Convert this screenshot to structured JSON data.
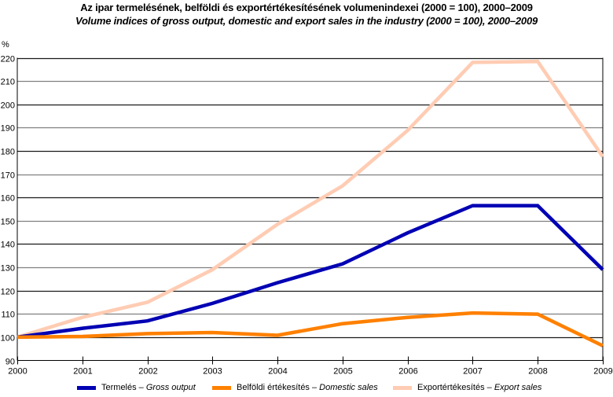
{
  "chart_data": {
    "type": "line",
    "title": "Az ipar termelésének, belföldi és exportértékesítésének volumenindexei (2000 = 100), 2000–2009",
    "subtitle": "Volume indices of gross output, domestic and export sales in the industry (2000 = 100), 2000–2009",
    "xlabel": "",
    "ylabel": "%",
    "x": [
      2000,
      2001,
      2002,
      2003,
      2004,
      2005,
      2006,
      2007,
      2008,
      2009
    ],
    "x_tick_labels": [
      "2000",
      "2001",
      "2002",
      "2003",
      "2004",
      "2005",
      "2006",
      "2007",
      "2008",
      "2009"
    ],
    "ylim": [
      90,
      220
    ],
    "y_ticks": [
      90,
      100,
      110,
      120,
      130,
      140,
      150,
      160,
      170,
      180,
      190,
      200,
      210,
      220
    ],
    "grid": true,
    "legend_position": "bottom",
    "series": [
      {
        "name": "Termelés – Gross output",
        "name_hu": "Termelés",
        "name_en": "Gross output",
        "color": "#0000b4",
        "values": [
          100,
          103.8,
          107.0,
          114.5,
          123.4,
          131.5,
          144.8,
          156.5,
          156.5,
          129.0
        ]
      },
      {
        "name": "Belföldi értékesítés – Domestic sales",
        "name_hu": "Belföldi értékesítés",
        "name_en": "Domestic sales",
        "color": "#ff8000",
        "values": [
          100,
          100.3,
          101.5,
          102.0,
          100.8,
          105.8,
          108.5,
          110.4,
          109.9,
          96.3
        ]
      },
      {
        "name": "Exportértékesítés – Export sales",
        "name_hu": "Exportértékesítés",
        "name_en": "Export sales",
        "color": "#ffccb3",
        "values": [
          100,
          108.5,
          115.0,
          129.0,
          148.5,
          165.0,
          188.8,
          218.0,
          218.4,
          177.5
        ]
      }
    ]
  }
}
